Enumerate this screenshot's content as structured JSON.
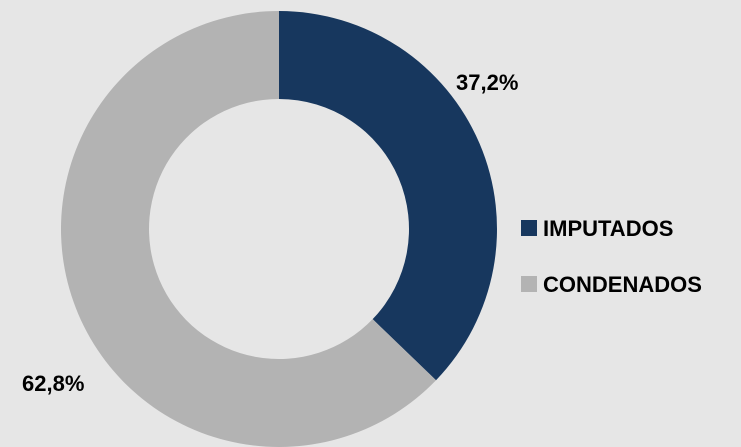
{
  "chart_data": {
    "type": "pie",
    "donut": true,
    "title": "",
    "categories": [
      "IMPUTADOS",
      "CONDENADOS"
    ],
    "values": [
      37.2,
      62.8
    ],
    "data_labels": [
      "37,2%",
      "62,8%"
    ],
    "colors": [
      "#17375e",
      "#b3b3b3"
    ],
    "legend": {
      "position": "right",
      "entries": [
        "IMPUTADOS",
        "CONDENADOS"
      ]
    },
    "background": "#e6e6e6"
  }
}
